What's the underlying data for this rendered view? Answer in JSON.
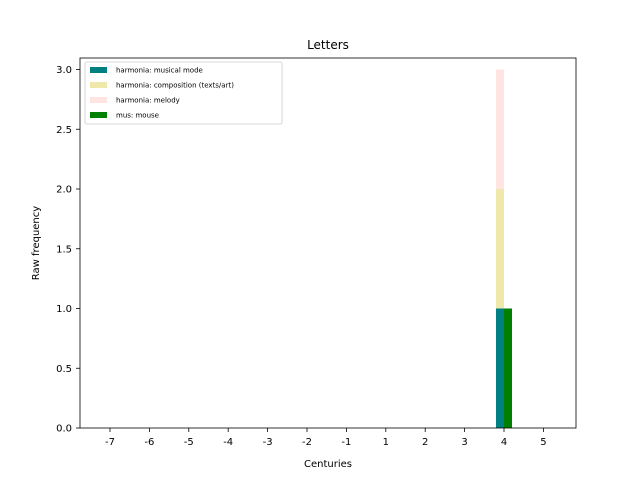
{
  "chart_data": {
    "type": "bar",
    "title": "Letters",
    "xlabel": "Centuries",
    "ylabel": "Raw frequency",
    "categories": [
      "-7",
      "-6",
      "-5",
      "-4",
      "-3",
      "-2",
      "-1",
      "1",
      "2",
      "3",
      "4",
      "5"
    ],
    "ylim": [
      0,
      3.0
    ],
    "yticks": [
      "0.0",
      "0.5",
      "1.0",
      "1.5",
      "2.0",
      "2.5",
      "3.0"
    ],
    "grid": false,
    "legend_position": "top-left",
    "series": [
      {
        "name": "harmonia: musical mode",
        "color": "#008080",
        "stack": "harmonia",
        "values": [
          0,
          0,
          0,
          0,
          0,
          0,
          0,
          0,
          0,
          0,
          1,
          0
        ]
      },
      {
        "name": "harmonia: composition (texts/art)",
        "color": "#eee8aa",
        "stack": "harmonia",
        "values": [
          0,
          0,
          0,
          0,
          0,
          0,
          0,
          0,
          0,
          0,
          1,
          0
        ]
      },
      {
        "name": "harmonia: melody",
        "color": "#ffe4e1",
        "stack": "harmonia",
        "values": [
          0,
          0,
          0,
          0,
          0,
          0,
          0,
          0,
          0,
          0,
          1,
          0
        ]
      },
      {
        "name": "mus: mouse",
        "color": "#008000",
        "stack": "mus",
        "values": [
          0,
          0,
          0,
          0,
          0,
          0,
          0,
          0,
          0,
          0,
          1,
          0
        ]
      }
    ]
  }
}
